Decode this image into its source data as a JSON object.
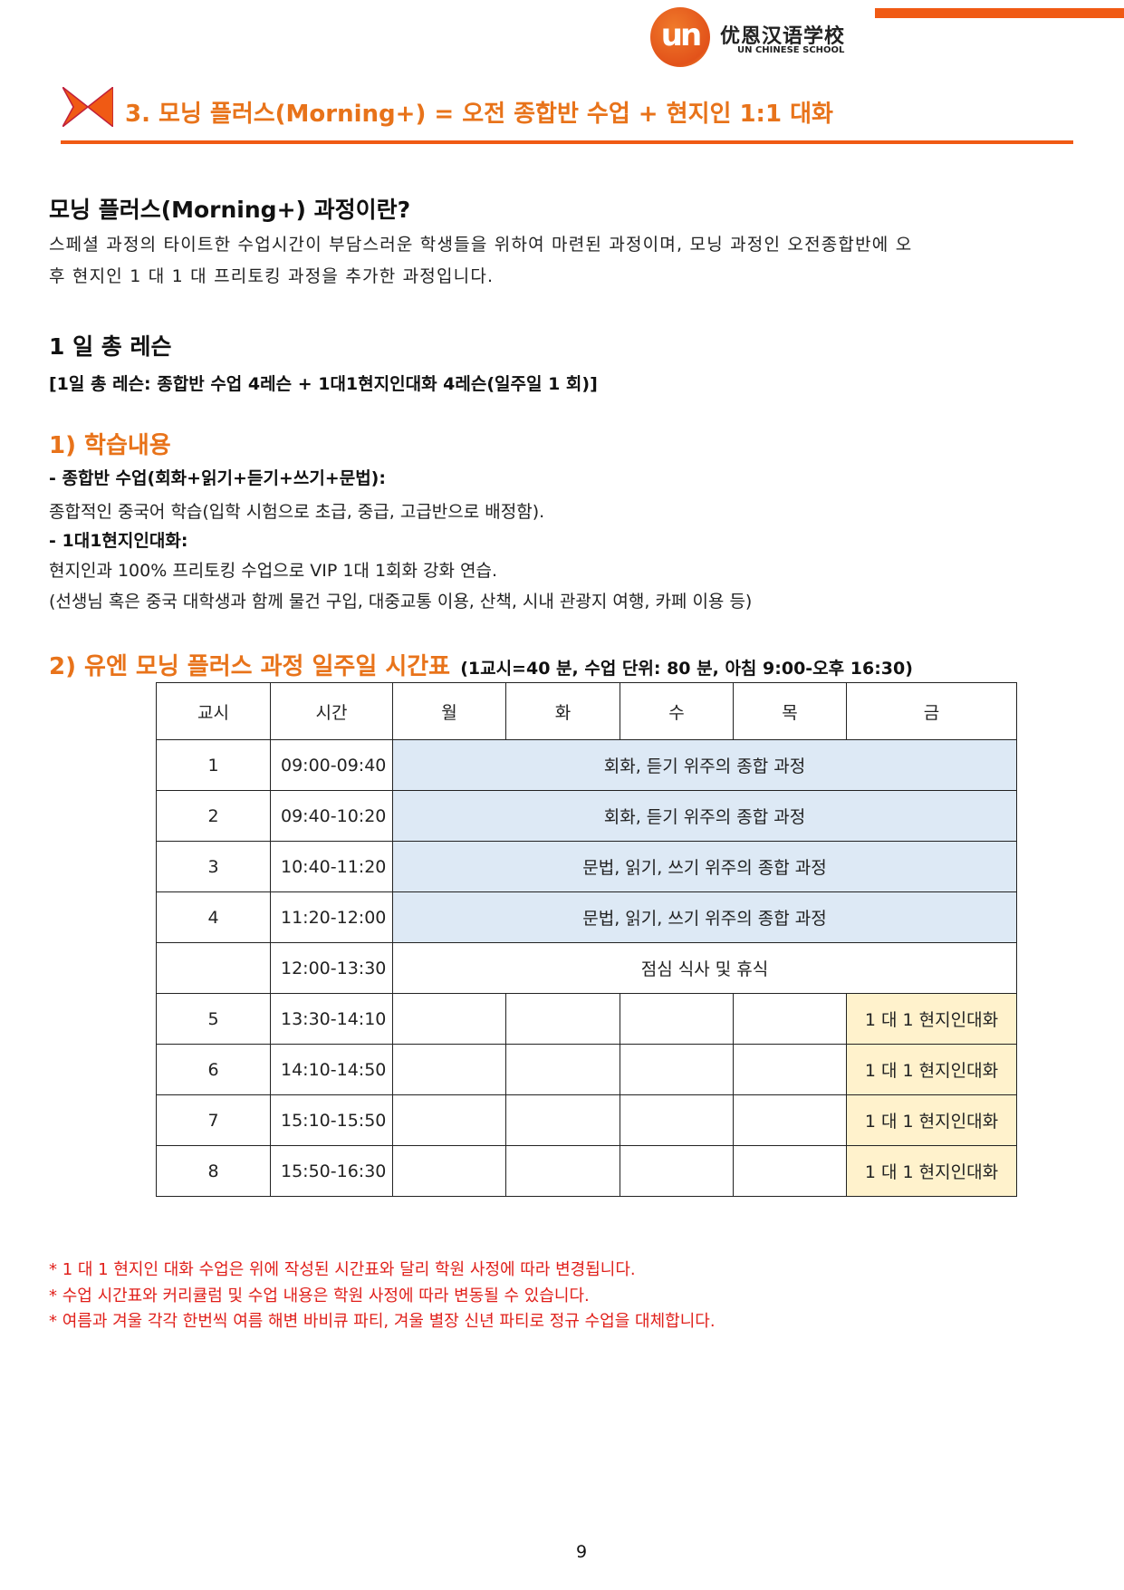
{
  "header": {
    "logo_mark": "un",
    "logo_cn": "优恩汉语学校",
    "logo_en": "UN CHINESE SCHOOL",
    "title": "3. 모닝 플러스(Morning+) = 오전 종합반 수업 + 현지인 1:1 대화",
    "accent": "#f05a14",
    "title_color": "#e8731a"
  },
  "intro": {
    "heading": "모닝 플러스(Morning+) 과정이란?",
    "line1": "스페셜 과정의 타이트한 수업시간이 부담스러운 학생들을 위하여 마련된 과정이며, 모닝 과정인 오전종합반에 오",
    "line2": "후 현지인 1 대 1 대 프리토킹 과정을 추가한 과정입니다."
  },
  "lessons": {
    "heading": "1 일 총 레슨",
    "detail": "[1일 총 레슨: 종합반 수업 4레슨 + 1대1현지인대화 4레슨(일주일 1 회)]"
  },
  "content": {
    "heading": "1) 학습내용",
    "item1_title": "- 종합반 수업(회화+읽기+듣기+쓰기+문법):",
    "item1_text": "종합적인 중국어 학습(입학 시험으로 초급, 중급, 고급반으로 배정함).",
    "item2_title": "- 1대1현지인대화:",
    "item2_text": "현지인과 100% 프리토킹 수업으로 VIP 1대 1회화 강화 연습.",
    "item2_text2": "(선생님 혹은 중국 대학생과 함께 물건 구입, 대중교통 이용, 산책, 시내 관광지 여행, 카페 이용 등)"
  },
  "schedule": {
    "heading": "2) 유엔 모닝 플러스 과정 일주일 시간표",
    "subheading": "(1교시=40 분, 수업 단위: 80 분, 아침 9:00-오후 16:30)",
    "columns": [
      "교시",
      "시간",
      "월",
      "화",
      "수",
      "목",
      "금"
    ],
    "rows": [
      {
        "period": "1",
        "time": "09:00-09:40",
        "content": "회화, 듣기 위주의 종합 과정"
      },
      {
        "period": "2",
        "time": "09:40-10:20",
        "content": "회화, 듣기 위주의 종합 과정"
      },
      {
        "period": "3",
        "time": "10:40-11:20",
        "content": "문법, 읽기, 쓰기 위주의 종합 과정"
      },
      {
        "period": "4",
        "time": "11:20-12:00",
        "content": "문법, 읽기, 쓰기 위주의 종합 과정"
      },
      {
        "period": "",
        "time": "12:00-13:30",
        "content": "점심 식사 및 휴식"
      },
      {
        "period": "5",
        "time": "13:30-14:10",
        "fri": "1 대 1 현지인대화"
      },
      {
        "period": "6",
        "time": "14:10-14:50",
        "fri": "1 대 1 현지인대화"
      },
      {
        "period": "7",
        "time": "15:10-15:50",
        "fri": "1 대 1 현지인대화"
      },
      {
        "period": "8",
        "time": "15:50-16:30",
        "fri": "1 대 1 현지인대화"
      }
    ],
    "colors": {
      "morning": "#dde9f5",
      "one_on_one": "#fff2cc"
    }
  },
  "notes": [
    "* 1 대 1 현지인 대화 수업은 위에 작성된 시간표와 달리 학원 사정에 따라 변경됩니다.",
    "* 수업 시간표와 커리큘럼 및 수업 내용은 학원 사정에 따라 변동될 수 있습니다.",
    "* 여름과 겨울 각각 한번씩 여름 해변 바비큐 파티, 겨울 별장 신년 파티로 정규 수업을 대체합니다."
  ],
  "page_number": "9"
}
